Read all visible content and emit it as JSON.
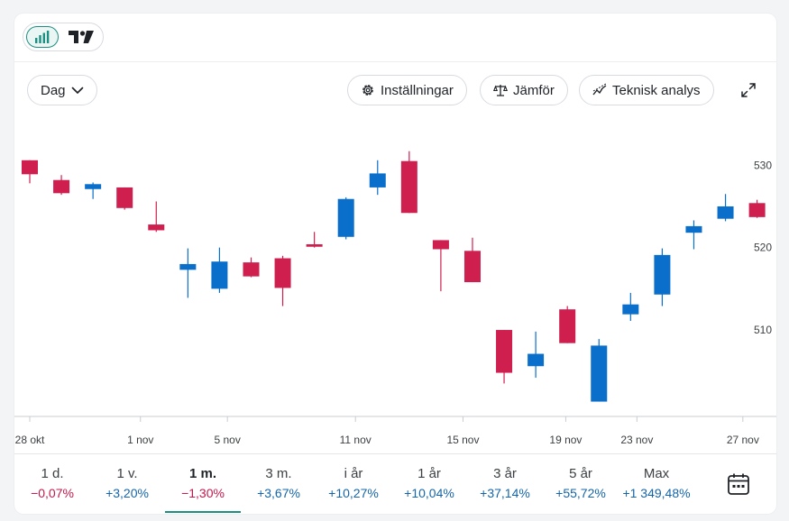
{
  "toolbar": {
    "period_label": "Dag",
    "settings_label": "Inställningar",
    "compare_label": "Jämför",
    "technical_label": "Teknisk analys"
  },
  "colors": {
    "up": "#0a6ecb",
    "down": "#cf1f4f",
    "accent": "#1a8f82"
  },
  "chart_data": {
    "type": "candlestick",
    "title": "",
    "y_ticks": [
      510,
      520,
      530
    ],
    "y_range": [
      499.5,
      535.5
    ],
    "x_tick_labels": [
      {
        "label": "28 okt",
        "index": 0
      },
      {
        "label": "1 nov",
        "index": 3.5
      },
      {
        "label": "5 nov",
        "index": 6.25
      },
      {
        "label": "11 nov",
        "index": 10.3
      },
      {
        "label": "15 nov",
        "index": 13.7
      },
      {
        "label": "19 nov",
        "index": 16.95
      },
      {
        "label": "23 nov",
        "index": 19.2
      },
      {
        "label": "27 nov",
        "index": 22.55
      }
    ],
    "candles": [
      {
        "o": 530.6,
        "c": 528.9,
        "h": 530.6,
        "l": 527.8
      },
      {
        "o": 528.2,
        "c": 526.6,
        "h": 528.8,
        "l": 526.4
      },
      {
        "o": 527.1,
        "c": 527.7,
        "h": 527.9,
        "l": 525.9
      },
      {
        "o": 527.3,
        "c": 524.8,
        "h": 527.3,
        "l": 524.6
      },
      {
        "o": 522.8,
        "c": 522.1,
        "h": 525.6,
        "l": 521.9
      },
      {
        "o": 517.3,
        "c": 518.0,
        "h": 519.9,
        "l": 513.9
      },
      {
        "o": 515.0,
        "c": 518.3,
        "h": 520.0,
        "l": 514.5
      },
      {
        "o": 518.2,
        "c": 516.5,
        "h": 518.8,
        "l": 516.4
      },
      {
        "o": 518.7,
        "c": 515.1,
        "h": 519.0,
        "l": 512.9
      },
      {
        "o": 520.4,
        "c": 520.1,
        "h": 521.9,
        "l": 520.0
      },
      {
        "o": 521.3,
        "c": 525.9,
        "h": 526.1,
        "l": 521.0
      },
      {
        "o": 527.3,
        "c": 529.0,
        "h": 530.6,
        "l": 526.4
      },
      {
        "o": 530.5,
        "c": 524.2,
        "h": 531.7,
        "l": 524.2
      },
      {
        "o": 520.9,
        "c": 519.8,
        "h": 520.9,
        "l": 514.7
      },
      {
        "o": 519.6,
        "c": 515.8,
        "h": 521.2,
        "l": 515.8
      },
      {
        "o": 510.0,
        "c": 504.8,
        "h": 510.0,
        "l": 503.5
      },
      {
        "o": 505.6,
        "c": 507.1,
        "h": 509.8,
        "l": 504.2
      },
      {
        "o": 512.5,
        "c": 508.4,
        "h": 512.9,
        "l": 508.4
      },
      {
        "o": 501.3,
        "c": 508.1,
        "h": 508.9,
        "l": 501.3
      },
      {
        "o": 511.9,
        "c": 513.1,
        "h": 514.5,
        "l": 511.1
      },
      {
        "o": 514.3,
        "c": 519.1,
        "h": 519.9,
        "l": 512.9
      },
      {
        "o": 521.8,
        "c": 522.6,
        "h": 523.3,
        "l": 519.8
      },
      {
        "o": 523.5,
        "c": 525.0,
        "h": 526.5,
        "l": 523.2
      },
      {
        "o": 525.4,
        "c": 523.7,
        "h": 525.8,
        "l": 523.6
      }
    ]
  },
  "tabs": [
    {
      "label": "1 d.",
      "change": "−0,07%",
      "dir": "neg"
    },
    {
      "label": "1 v.",
      "change": "+3,20%",
      "dir": "pos"
    },
    {
      "label": "1 m.",
      "change": "−1,30%",
      "dir": "neg"
    },
    {
      "label": "3 m.",
      "change": "+3,67%",
      "dir": "pos"
    },
    {
      "label": "i år",
      "change": "+10,27%",
      "dir": "pos"
    },
    {
      "label": "1 år",
      "change": "+10,04%",
      "dir": "pos"
    },
    {
      "label": "3 år",
      "change": "+37,14%",
      "dir": "pos"
    },
    {
      "label": "5 år",
      "change": "+55,72%",
      "dir": "pos"
    },
    {
      "label": "Max",
      "change": "+1 349,48%",
      "dir": "pos"
    }
  ],
  "active_tab": 2
}
